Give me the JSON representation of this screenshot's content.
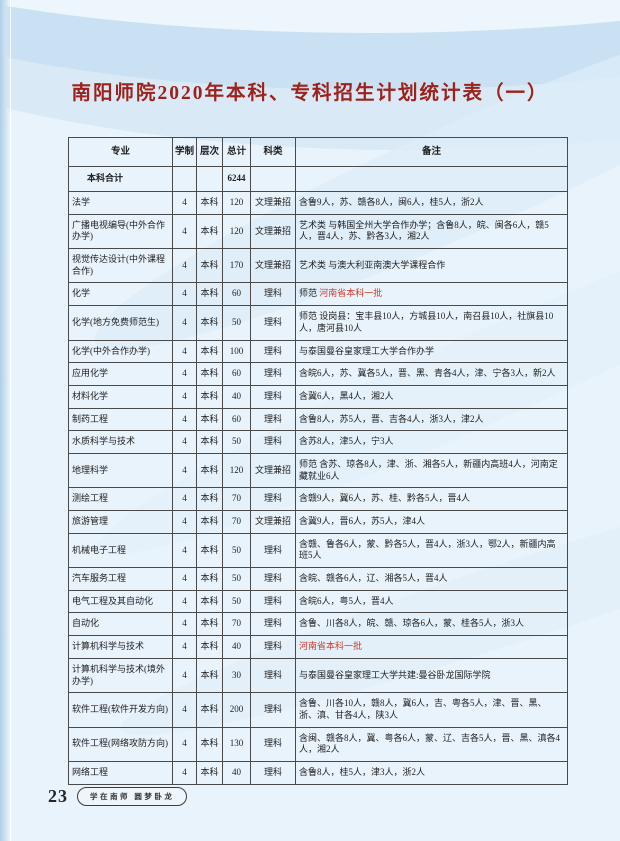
{
  "page": {
    "title": "南阳师院2020年本科、专科招生计划统计表（一）",
    "page_number": "23",
    "footer_slogan": "学在南师  圆梦卧龙",
    "colors": {
      "title_red": "#9e211c",
      "highlight_red": "#cf3a28",
      "background": "#e9f3fb",
      "wave_blue": "#c9e1f2"
    }
  },
  "table": {
    "columns": [
      "专业",
      "学制",
      "层次",
      "总计",
      "科类",
      "备注"
    ],
    "summary": {
      "major": "本科合计",
      "duration": "",
      "level": "",
      "total": "6244",
      "category": "",
      "remark": ""
    },
    "rows": [
      {
        "major": "法学",
        "duration": "4",
        "level": "本科",
        "total": "120",
        "category": "文理兼招",
        "remark": "含鲁9人，苏、赣各8人，闽6人，桂5人，浙2人",
        "remark_red": ""
      },
      {
        "major": "广播电视编导(中外合作办学)",
        "duration": "4",
        "level": "本科",
        "total": "120",
        "category": "文理兼招",
        "remark": "艺术类 与韩国全州大学合作办学；含鲁8人，皖、闽各6人，赣5人，晋4人，苏、黔各3人，湘2人",
        "remark_red": ""
      },
      {
        "major": "视觉传达设计(中外课程合作)",
        "duration": "4",
        "level": "本科",
        "total": "170",
        "category": "文理兼招",
        "remark": "艺术类 与澳大利亚南澳大学课程合作",
        "remark_red": ""
      },
      {
        "major": "化学",
        "duration": "4",
        "level": "本科",
        "total": "60",
        "category": "理科",
        "remark": "师范 ",
        "remark_red": "河南省本科一批"
      },
      {
        "major": "化学(地方免费师范生)",
        "duration": "4",
        "level": "本科",
        "total": "50",
        "category": "理科",
        "remark": "师范 设岗县：宝丰县10人，方城县10人，南召县10人，社旗县10人，唐河县10人",
        "remark_red": ""
      },
      {
        "major": "化学(中外合作办学)",
        "duration": "4",
        "level": "本科",
        "total": "100",
        "category": "理科",
        "remark": "与泰国曼谷皇家理工大学合作办学",
        "remark_red": ""
      },
      {
        "major": "应用化学",
        "duration": "4",
        "level": "本科",
        "total": "60",
        "category": "理科",
        "remark": "含皖6人，苏、冀各5人，晋、黑、青各4人，津、宁各3人，新2人",
        "remark_red": ""
      },
      {
        "major": "材料化学",
        "duration": "4",
        "level": "本科",
        "total": "40",
        "category": "理科",
        "remark": "含冀6人，黑4人，湘2人",
        "remark_red": ""
      },
      {
        "major": "制药工程",
        "duration": "4",
        "level": "本科",
        "total": "60",
        "category": "理科",
        "remark": "含鲁8人，苏5人，晋、吉各4人，浙3人，津2人",
        "remark_red": ""
      },
      {
        "major": "水质科学与技术",
        "duration": "4",
        "level": "本科",
        "total": "50",
        "category": "理科",
        "remark": "含苏8人，津5人，宁3人",
        "remark_red": ""
      },
      {
        "major": "地理科学",
        "duration": "4",
        "level": "本科",
        "total": "120",
        "category": "文理兼招",
        "remark": "师范 含苏、琼各8人，津、浙、湘各5人，新疆内高班4人，河南定藏就业6人",
        "remark_red": ""
      },
      {
        "major": "测绘工程",
        "duration": "4",
        "level": "本科",
        "total": "70",
        "category": "理科",
        "remark": "含赣9人，冀6人，苏、桂、黔各5人，晋4人",
        "remark_red": ""
      },
      {
        "major": "旅游管理",
        "duration": "4",
        "level": "本科",
        "total": "70",
        "category": "文理兼招",
        "remark": "含冀9人，晋6人，苏5人，津4人",
        "remark_red": ""
      },
      {
        "major": "机械电子工程",
        "duration": "4",
        "level": "本科",
        "total": "50",
        "category": "理科",
        "remark": "含赣、鲁各6人，蒙、黔各5人，晋4人，浙3人，鄂2人，新疆内高班5人",
        "remark_red": ""
      },
      {
        "major": "汽车服务工程",
        "duration": "4",
        "level": "本科",
        "total": "50",
        "category": "理科",
        "remark": "含皖、赣各6人，辽、湘各5人，晋4人",
        "remark_red": ""
      },
      {
        "major": "电气工程及其自动化",
        "duration": "4",
        "level": "本科",
        "total": "50",
        "category": "理科",
        "remark": "含皖6人，粤5人，晋4人",
        "remark_red": ""
      },
      {
        "major": "自动化",
        "duration": "4",
        "level": "本科",
        "total": "70",
        "category": "理科",
        "remark": "含鲁、川各8人，皖、赣、琼各6人，蒙、桂各5人，浙3人",
        "remark_red": ""
      },
      {
        "major": "计算机科学与技术",
        "duration": "4",
        "level": "本科",
        "total": "40",
        "category": "理科",
        "remark": "",
        "remark_red": "河南省本科一批"
      },
      {
        "major": "计算机科学与技术(境外办学)",
        "duration": "4",
        "level": "本科",
        "total": "30",
        "category": "理科",
        "remark": "与泰国曼谷皇家理工大学共建:曼谷卧龙国际学院",
        "remark_red": ""
      },
      {
        "major": "软件工程(软件开发方向)",
        "duration": "4",
        "level": "本科",
        "total": "200",
        "category": "理科",
        "remark": "含鲁、川各10人，赣8人，冀6人，吉、粤各5人，津、晋、黑、浙、滇、甘各4人，陕3人",
        "remark_red": ""
      },
      {
        "major": "软件工程(网络攻防方向)",
        "duration": "4",
        "level": "本科",
        "total": "130",
        "category": "理科",
        "remark": "含闽、赣各8人，冀、粤各6人，蒙、辽、吉各5人，晋、黑、滇各4人，湘2人",
        "remark_red": ""
      },
      {
        "major": "网络工程",
        "duration": "4",
        "level": "本科",
        "total": "40",
        "category": "理科",
        "remark": "含鲁8人，桂5人，津3人，浙2人",
        "remark_red": ""
      }
    ]
  }
}
